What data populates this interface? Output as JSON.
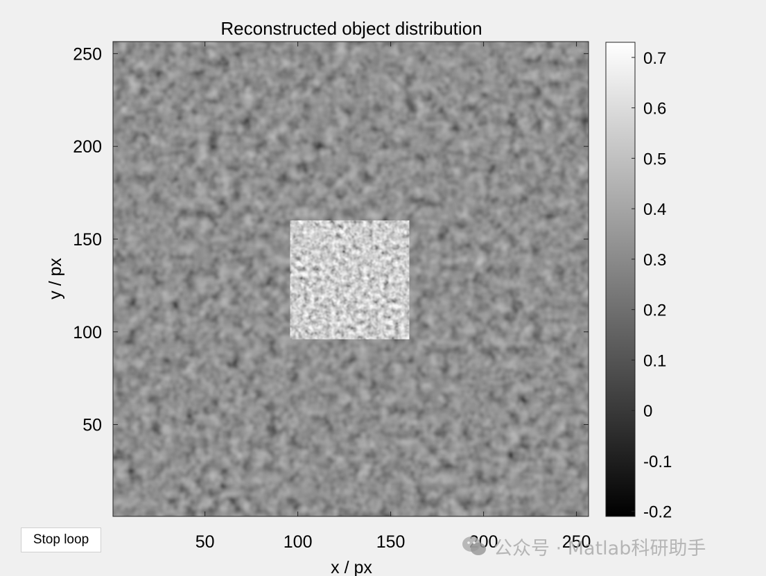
{
  "plot": {
    "title": "Reconstructed object distribution",
    "xlabel": "x / px",
    "ylabel": "y / px",
    "xlim": [
      1,
      256
    ],
    "ylim": [
      1,
      256
    ],
    "xticks": [
      50,
      100,
      150,
      200,
      250
    ],
    "yticks": [
      50,
      100,
      150,
      200,
      250
    ],
    "colormap": "gray"
  },
  "colorbar": {
    "range": [
      -0.21,
      0.73
    ],
    "ticks": [
      "0.7",
      "0.6",
      "0.5",
      "0.4",
      "0.3",
      "0.2",
      "0.1",
      "0",
      "-0.1",
      "-0.2"
    ]
  },
  "object_region": {
    "x": [
      96,
      160
    ],
    "y": [
      96,
      160
    ]
  },
  "controls": {
    "stop_label": "Stop loop"
  },
  "watermark": {
    "text": "公众号 · Matlab科研助手"
  }
}
